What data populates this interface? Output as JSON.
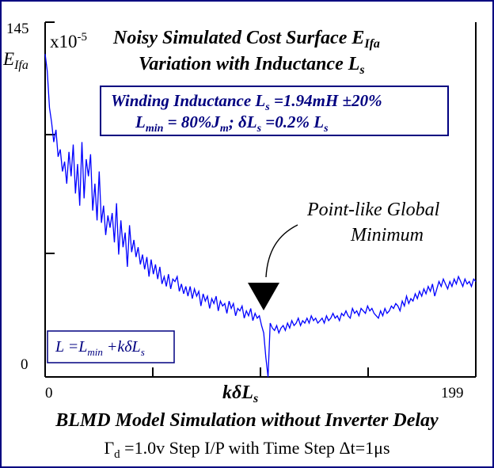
{
  "chart_data": {
    "type": "line",
    "title_lines": [
      "Noisy Simulated Cost Surface E",
      "Variation with Inductance L"
    ],
    "title_subscripts": [
      "Ifa",
      "s"
    ],
    "ylabel": "E",
    "ylabel_sub": "Ifa",
    "y_multiplier": "x10",
    "y_multiplier_exp": "-5",
    "xlabel": "kδL",
    "xlabel_sub": "s",
    "xlim": [
      0,
      199
    ],
    "ylim": [
      0,
      145
    ],
    "x_tick_labels": [
      "0",
      "199"
    ],
    "y_tick_labels": [
      "145",
      "0"
    ],
    "line_color": "#0000ff",
    "series": [
      {
        "x": [
          0,
          1,
          2,
          3,
          4,
          5,
          6,
          7,
          8,
          9,
          10,
          11,
          12,
          13,
          14,
          15,
          16,
          17,
          18,
          19,
          20,
          21,
          22,
          23,
          24,
          25,
          26,
          27,
          28,
          29,
          30,
          31,
          32,
          33,
          34,
          35,
          36,
          37,
          38,
          39,
          40,
          41,
          42,
          43,
          44,
          45,
          46,
          47,
          48,
          49,
          50,
          51,
          52,
          53,
          54,
          55,
          56,
          57,
          58,
          59,
          60,
          61,
          62,
          63,
          64,
          65,
          66,
          67,
          68,
          69,
          70,
          71,
          72,
          73,
          74,
          75,
          76,
          77,
          78,
          79,
          80,
          81,
          82,
          83,
          84,
          85,
          86,
          87,
          88,
          89,
          90,
          91,
          92,
          93,
          94,
          95,
          96,
          97,
          98,
          99,
          100,
          101,
          102,
          103,
          104,
          105,
          106,
          107,
          108,
          109,
          110,
          111,
          112,
          113,
          114,
          115,
          116,
          117,
          118,
          119,
          120,
          121,
          122,
          123,
          124,
          125,
          126,
          127,
          128,
          129,
          130,
          131,
          132,
          133,
          134,
          135,
          136,
          137,
          138,
          139,
          140,
          141,
          142,
          143,
          144,
          145,
          146,
          147,
          148,
          149,
          150,
          151,
          152,
          153,
          154,
          155,
          156,
          157,
          158,
          159,
          160,
          161,
          162,
          163,
          164,
          165,
          166,
          167,
          168,
          169,
          170,
          171,
          172,
          173,
          174,
          175,
          176,
          177,
          178,
          179,
          180,
          181,
          182,
          183,
          184,
          185,
          186,
          187,
          188,
          189,
          190,
          191,
          192,
          193,
          194,
          195,
          196,
          197,
          198,
          199
        ],
        "y": [
          132,
          125,
          110,
          104,
          96,
          101,
          90,
          93,
          84,
          88,
          79,
          92,
          82,
          95,
          75,
          87,
          70,
          96,
          73,
          89,
          82,
          91,
          68,
          79,
          64,
          84,
          63,
          70,
          58,
          66,
          61,
          67,
          55,
          71,
          50,
          64,
          53,
          59,
          45,
          62,
          51,
          56,
          49,
          53,
          46,
          50,
          44,
          49,
          41,
          48,
          42,
          46,
          40,
          45,
          38,
          41,
          37,
          42,
          36,
          40,
          39,
          41,
          35,
          38,
          34,
          37,
          33,
          37,
          32,
          36,
          33,
          35,
          29,
          34,
          31,
          33,
          28,
          32,
          30,
          33,
          27,
          31,
          29,
          30,
          26,
          31,
          28,
          30,
          25,
          28,
          27,
          29,
          24,
          27,
          25,
          28,
          23,
          26,
          24,
          25,
          21,
          18,
          8,
          0,
          22,
          20,
          19,
          21,
          18,
          20,
          21,
          19,
          22,
          20,
          23,
          21,
          22,
          24,
          21,
          23,
          22,
          24,
          22,
          25,
          23,
          24,
          22,
          23,
          24,
          22,
          25,
          23,
          24,
          26,
          24,
          25,
          23,
          26,
          25,
          27,
          25,
          24,
          28,
          26,
          27,
          25,
          28,
          27,
          26,
          29,
          27,
          28,
          26,
          25,
          24,
          27,
          25,
          28,
          26,
          27,
          29,
          28,
          30,
          29,
          27,
          31,
          29,
          33,
          30,
          32,
          31,
          34,
          32,
          35,
          33,
          36,
          34,
          37,
          35,
          38,
          33,
          36,
          39,
          37,
          40,
          38,
          36,
          39,
          37,
          40,
          38,
          41,
          39,
          37,
          40,
          38,
          39,
          37,
          40,
          39
        ]
      }
    ],
    "annotation_lines": [
      "Point-like Global",
      "Minimum"
    ],
    "annotation_x": 101,
    "box_top": {
      "line1_pre": "Winding Inductance L",
      "line1_sub": "s",
      "line1_post": " =1.94mH ±20%",
      "line2_a": "L",
      "line2_a_sub": "min",
      "line2_b": " = 80%J",
      "line2_b_sub": "m",
      "line2_c": ";  δL",
      "line2_c_sub": "s",
      "line2_d": " =0.2% L",
      "line2_d_sub": "s"
    },
    "box_bottom": {
      "a": "L =L",
      "a_sub": "min",
      "b": " +kδL",
      "b_sub": "s"
    },
    "caption_line1": "BLMD Model Simulation without Inverter Delay",
    "caption_line2_pre": "Γ",
    "caption_line2_sub": "d",
    "caption_line2_post": " =1.0v Step I/P with Time Step Δt=1μs"
  }
}
